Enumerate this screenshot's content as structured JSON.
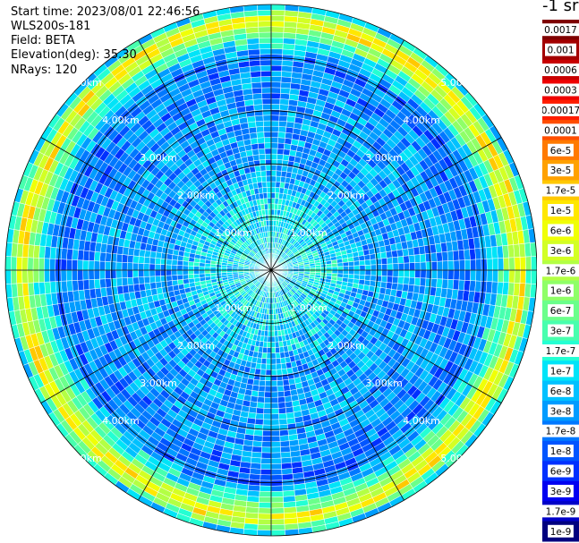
{
  "header": {
    "start_time": "Start time: 2023/08/01 22:46:56",
    "instrument": "WLS200s-181",
    "field": "Field: BETA",
    "elevation": "Elevation(deg): 35.30",
    "nrays": "NRays: 120"
  },
  "colorbar": {
    "unit_label": "-1 sr",
    "labels": [
      "0.0017",
      "0.001",
      "0.0006",
      "0.0003",
      "0.00017",
      "0.0001",
      "6e-5",
      "3e-5",
      "1.7e-5",
      "1e-5",
      "6e-6",
      "3e-6",
      "1.7e-6",
      "1e-6",
      "6e-7",
      "3e-7",
      "1.7e-7",
      "1e-7",
      "6e-8",
      "3e-8",
      "1.7e-8",
      "1e-8",
      "6e-9",
      "3e-9",
      "1.7e-9",
      "1e-9"
    ],
    "colors": [
      "#7f0000",
      "#a30000",
      "#c80000",
      "#ee0000",
      "#ff1d00",
      "#ff4e00",
      "#ff7a00",
      "#ffa100",
      "#ffc800",
      "#ffe700",
      "#f0ff06",
      "#d3ff24",
      "#b3ff44",
      "#8fff67",
      "#6bff8b",
      "#48ffae",
      "#24ffd3",
      "#00e4f8",
      "#00c1ff",
      "#009cff",
      "#0078ff",
      "#0055ff",
      "#0030ff",
      "#0000f1",
      "#0000c8",
      "#00007f"
    ]
  },
  "chart_data": {
    "type": "heatmap",
    "projection": "polar (PPI)",
    "n_rays": 120,
    "max_range_km": 5.0,
    "range_rings_km": [
      1,
      2,
      3,
      4,
      5
    ],
    "ring_labels": [
      "1.00km",
      "2.00km",
      "3.00km",
      "4.00km",
      "5.00km"
    ],
    "azimuth_spokes_deg": [
      0,
      30,
      60,
      90,
      120,
      150,
      180,
      210,
      240,
      270,
      300,
      330
    ],
    "color_scale": "log",
    "value_range": [
      1e-09,
      0.0017
    ],
    "radial_profile": [
      {
        "range_km": 0.0,
        "beta": 1e-07
      },
      {
        "range_km": 1.0,
        "beta": 1e-07
      },
      {
        "range_km": 2.0,
        "beta": 3e-08
      },
      {
        "range_km": 3.0,
        "beta": 3e-08
      },
      {
        "range_km": 4.0,
        "beta": 1.7e-08
      },
      {
        "range_km": 4.4,
        "beta": 3e-07
      },
      {
        "range_km": 4.7,
        "beta": 1e-05
      },
      {
        "range_km": 5.0,
        "beta": 3e-08
      }
    ]
  }
}
